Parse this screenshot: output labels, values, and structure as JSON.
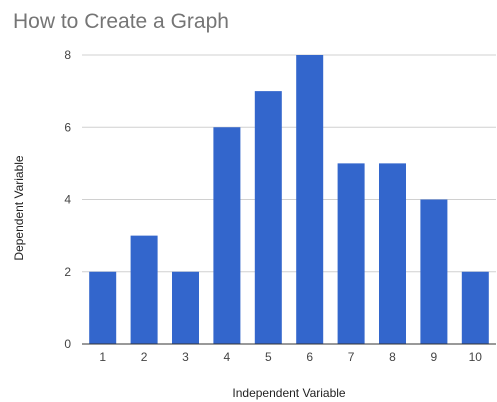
{
  "chart_data": {
    "type": "bar",
    "title": "How to Create a Graph",
    "xlabel": "Independent Variable",
    "ylabel": "Dependent Variable",
    "categories": [
      "1",
      "2",
      "3",
      "4",
      "5",
      "6",
      "7",
      "8",
      "9",
      "10"
    ],
    "values": [
      2,
      3,
      2,
      6,
      7,
      8,
      5,
      5,
      4,
      2
    ],
    "ylim": [
      0,
      8
    ],
    "yticks": [
      0,
      2,
      4,
      6,
      8
    ],
    "grid": true,
    "legend": "none",
    "bar_color": "#3366cc"
  }
}
